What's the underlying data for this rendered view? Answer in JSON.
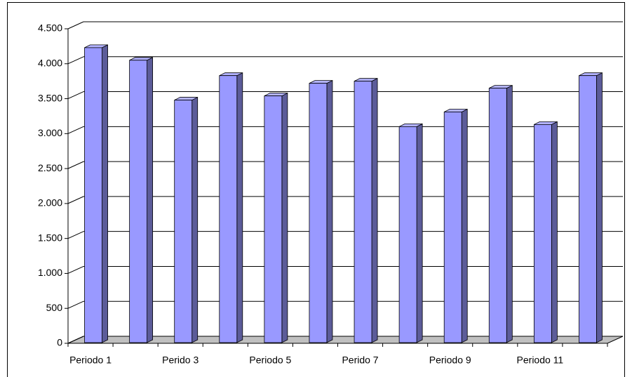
{
  "chart_data": {
    "type": "bar3d",
    "categories": [
      "Periodo 1",
      null,
      "Perido 3",
      null,
      "Periodo 5",
      null,
      "Perido 7",
      null,
      "Periodo 9",
      null,
      "Periodo 11",
      null
    ],
    "values": [
      4230,
      4050,
      3480,
      3830,
      3540,
      3720,
      3750,
      3100,
      3310,
      3650,
      3130,
      3830
    ],
    "color": "#9999ff",
    "ylim": [
      0,
      4500
    ],
    "yticks": [
      0,
      500,
      {
        "value": 1000,
        "label": "1.000"
      },
      {
        "value": 1500,
        "label": "1.500"
      },
      {
        "value": 2000,
        "label": "2.000"
      },
      {
        "value": 2500,
        "label": "2.500"
      },
      {
        "value": 3000,
        "label": "3.000"
      },
      {
        "value": 3500,
        "label": "3.500"
      },
      {
        "value": 4000,
        "label": "4.000"
      },
      {
        "value": 4500,
        "label": "4.500"
      }
    ],
    "grid": true
  }
}
